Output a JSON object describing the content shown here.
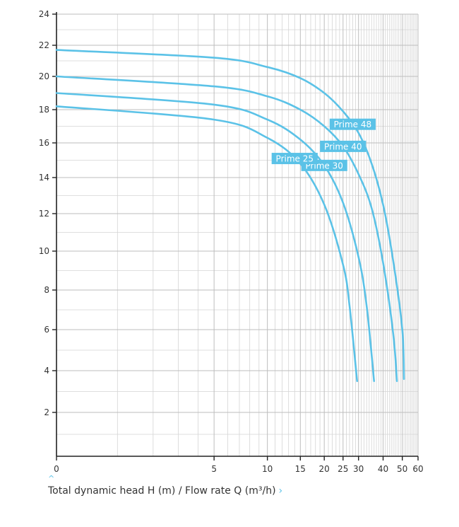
{
  "chart_data": {
    "type": "line",
    "title": "",
    "xlabel": "Total dynamic head H (m) / Flow rate Q (m³/h)",
    "ylabel": "",
    "xscale": "log(1 + x)",
    "xlim": [
      0,
      60
    ],
    "ylim": [
      0,
      24
    ],
    "x_ticks": [
      0,
      5,
      10,
      15,
      20,
      25,
      30,
      40,
      50,
      60
    ],
    "y_ticks": [
      2,
      4,
      6,
      8,
      10,
      12,
      14,
      16,
      18,
      20,
      22,
      24
    ],
    "grid": true,
    "series": [
      {
        "name": "Prime 48",
        "x": [
          0,
          5,
          10,
          15,
          20,
          25,
          30,
          35,
          40,
          45,
          50,
          51
        ],
        "y": [
          21.7,
          21.2,
          20.6,
          19.9,
          19.0,
          17.9,
          16.6,
          14.8,
          12.5,
          9.5,
          6.0,
          3.6
        ]
      },
      {
        "name": "Prime 40",
        "x": [
          0,
          5,
          10,
          15,
          20,
          25,
          30,
          35,
          40,
          45,
          47
        ],
        "y": [
          20.0,
          19.4,
          18.8,
          18.0,
          17.0,
          15.8,
          14.2,
          12.3,
          9.4,
          5.8,
          3.5
        ]
      },
      {
        "name": "Prime 30",
        "x": [
          0,
          5,
          10,
          15,
          20,
          25,
          30,
          33,
          36
        ],
        "y": [
          19.0,
          18.3,
          17.4,
          16.2,
          14.7,
          12.6,
          9.7,
          7.2,
          3.5
        ]
      },
      {
        "name": "Prime 25",
        "x": [
          0,
          5,
          10,
          15,
          20,
          25,
          27,
          29.5
        ],
        "y": [
          18.2,
          17.4,
          16.3,
          14.8,
          12.5,
          9.3,
          7.2,
          3.5
        ]
      }
    ],
    "color": "#5bc2e7"
  },
  "caption": {
    "text": "Total dynamic head H (m) / Flow rate Q (m³/h)",
    "link_glyph": "›",
    "caret_glyph": "^"
  }
}
